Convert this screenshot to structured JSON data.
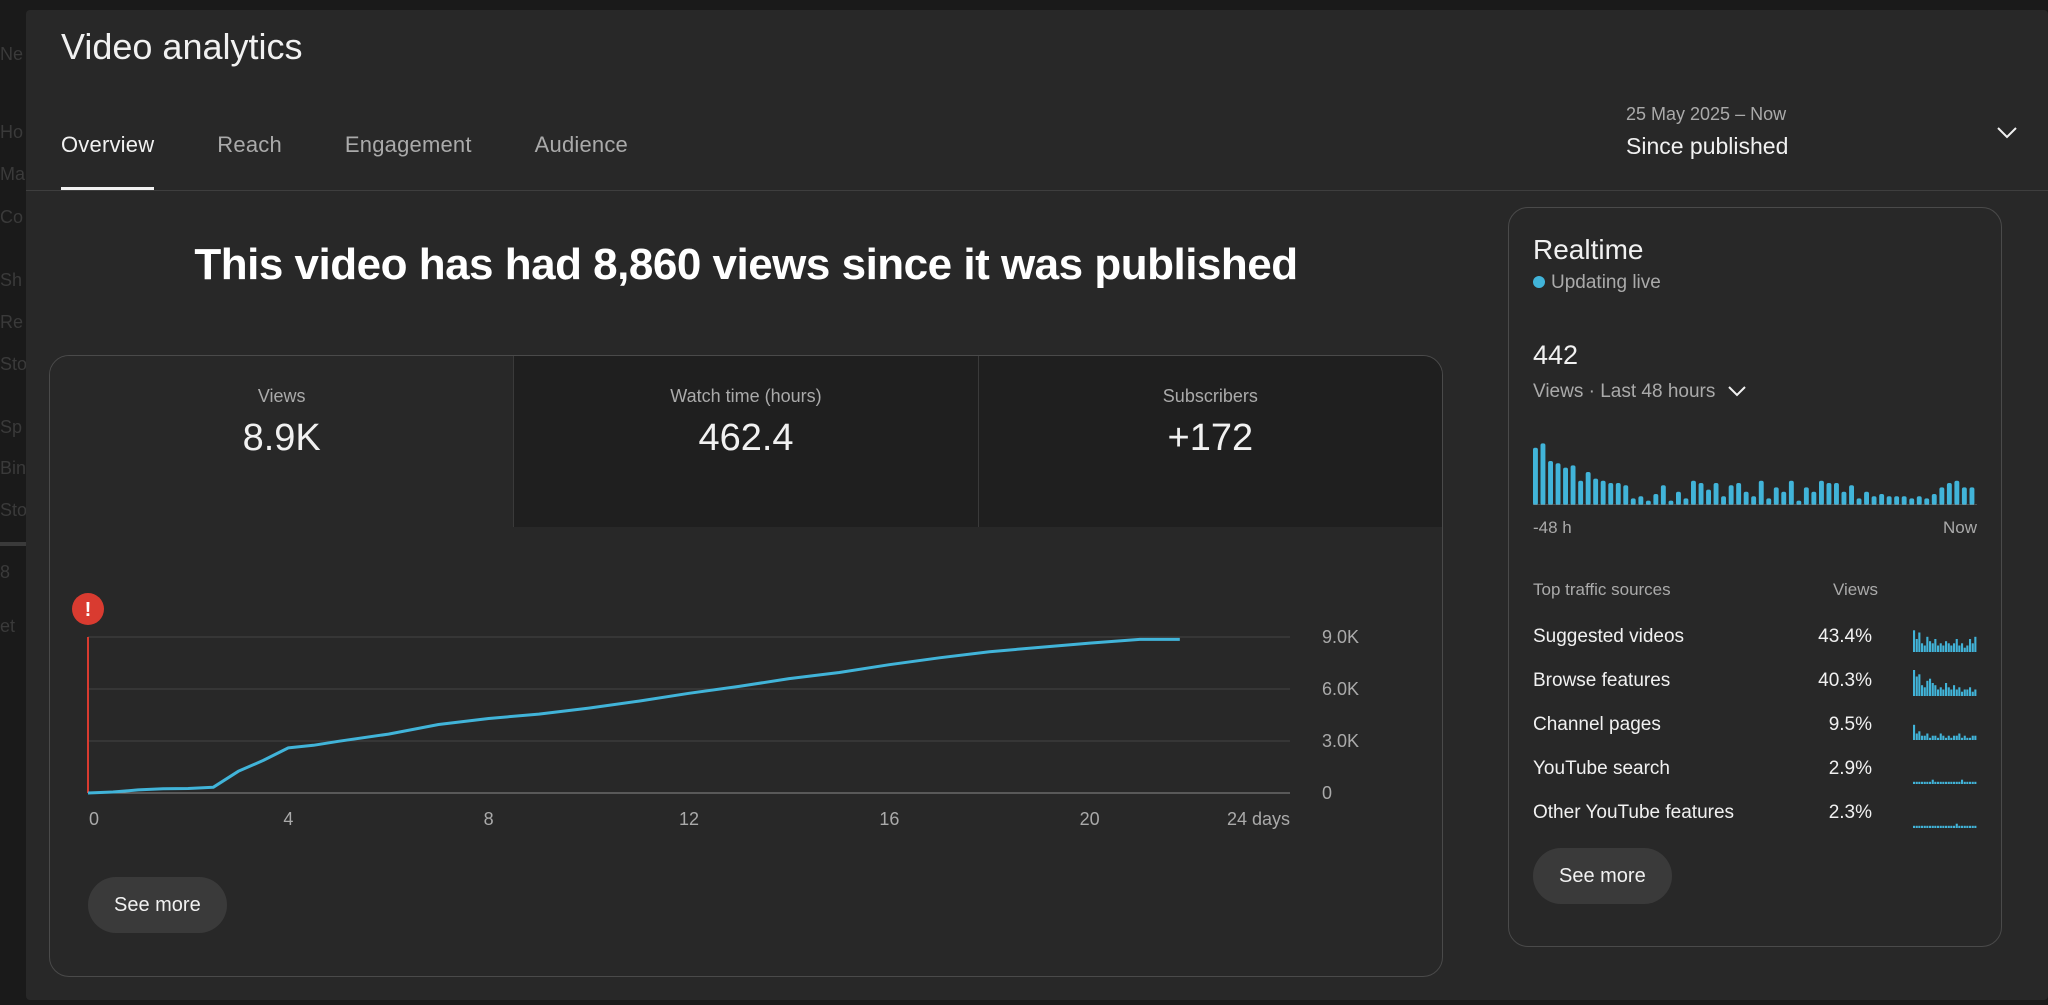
{
  "backdrop": [
    "Ne",
    "Ho",
    "Ma",
    "Co",
    "Sh",
    "Re",
    "Sto",
    "Sp",
    "Bin",
    "Sto",
    "8",
    "et"
  ],
  "title": "Video analytics",
  "tabs": [
    {
      "label": "Overview",
      "active": true
    },
    {
      "label": "Reach",
      "active": false
    },
    {
      "label": "Engagement",
      "active": false
    },
    {
      "label": "Audience",
      "active": false
    }
  ],
  "date_picker": {
    "range": "25 May 2025 – Now",
    "label": "Since published"
  },
  "headline": "This video has had 8,860 views since it was published",
  "metrics": [
    {
      "label": "Views",
      "value": "8.9K"
    },
    {
      "label": "Watch time (hours)",
      "value": "462.4"
    },
    {
      "label": "Subscribers",
      "value": "+172"
    }
  ],
  "see_more_label": "See more",
  "chart_data": {
    "type": "line",
    "series": [
      {
        "values": [
          [
            0,
            0
          ],
          [
            0.5,
            60
          ],
          [
            1,
            180
          ],
          [
            1.5,
            240
          ],
          [
            2,
            260
          ],
          [
            2.5,
            330
          ],
          [
            3,
            1250
          ],
          [
            3.5,
            1880
          ],
          [
            4,
            2600
          ],
          [
            4.5,
            2750
          ],
          [
            5,
            2980
          ],
          [
            6,
            3400
          ],
          [
            7,
            3950
          ],
          [
            8,
            4300
          ],
          [
            9,
            4550
          ],
          [
            10,
            4900
          ],
          [
            11,
            5300
          ],
          [
            12,
            5750
          ],
          [
            13,
            6150
          ],
          [
            14,
            6600
          ],
          [
            15,
            6950
          ],
          [
            16,
            7400
          ],
          [
            17,
            7800
          ],
          [
            18,
            8150
          ],
          [
            19,
            8400
          ],
          [
            20,
            8650
          ],
          [
            21,
            8860
          ],
          [
            21.8,
            8860
          ]
        ]
      }
    ],
    "xticks": [
      "0",
      "4",
      "8",
      "12",
      "16",
      "20",
      "24 days"
    ],
    "yticks": [
      "0",
      "3.0K",
      "6.0K",
      "9.0K"
    ],
    "xlim": [
      0,
      24
    ],
    "ylim": [
      0,
      9000
    ],
    "color": "#41b4d9",
    "alert_color": "#d93b30"
  },
  "realtime": {
    "title": "Realtime",
    "live_label": "Updating live",
    "count": "442",
    "scope_label": "Views · Last 48 hours",
    "bars": [
      26,
      28,
      20,
      19,
      17,
      18,
      11,
      15,
      12,
      11,
      10,
      10,
      9,
      3,
      4,
      2,
      5,
      9,
      2,
      6,
      3,
      11,
      10,
      7,
      10,
      4,
      9,
      10,
      6,
      4,
      11,
      3,
      8,
      6,
      11,
      2,
      8,
      6,
      11,
      10,
      10,
      6,
      9,
      3,
      6,
      4,
      5,
      4,
      4,
      4,
      3,
      4,
      3,
      5,
      8,
      10,
      11,
      8,
      8
    ],
    "axis_left": "-48 h",
    "axis_right": "Now",
    "traffic_head": {
      "name": "Top traffic sources",
      "views": "Views"
    },
    "traffic": [
      {
        "name": "Suggested videos",
        "pct": "43.4%",
        "spark": [
          10,
          6,
          9,
          4,
          3,
          7,
          5,
          4,
          6,
          3,
          4,
          3,
          5,
          4,
          3,
          4,
          6,
          3,
          4,
          2,
          3,
          6,
          4,
          7
        ]
      },
      {
        "name": "Browse features",
        "pct": "40.3%",
        "spark": [
          12,
          9,
          10,
          5,
          4,
          7,
          8,
          6,
          5,
          3,
          4,
          3,
          6,
          4,
          3,
          5,
          3,
          4,
          2,
          3,
          3,
          4,
          2,
          3
        ]
      },
      {
        "name": "Channel pages",
        "pct": "9.5%",
        "spark": [
          7,
          3,
          4,
          2,
          2,
          3,
          1,
          2,
          2,
          1,
          3,
          2,
          1,
          2,
          1,
          2,
          2,
          3,
          1,
          2,
          1,
          1,
          2,
          2
        ]
      },
      {
        "name": "YouTube search",
        "pct": "2.9%",
        "spark": [
          1,
          1,
          1,
          1,
          1,
          1,
          1,
          2,
          1,
          1,
          1,
          1,
          1,
          1,
          1,
          1,
          1,
          1,
          2,
          1,
          1,
          1,
          1,
          1
        ]
      },
      {
        "name": "Other YouTube features",
        "pct": "2.3%",
        "spark": [
          1,
          1,
          1,
          1,
          1,
          1,
          1,
          1,
          1,
          1,
          1,
          1,
          1,
          1,
          1,
          1,
          2,
          1,
          1,
          1,
          1,
          1,
          1,
          1
        ]
      }
    ]
  },
  "accent_color": "#41b4d9"
}
